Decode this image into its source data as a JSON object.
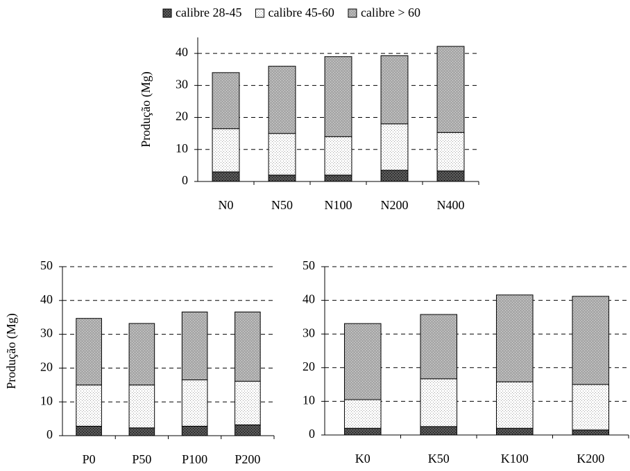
{
  "chart_data": [
    {
      "type": "stacked_bar",
      "y_label": "Produção (Mg)",
      "categories": [
        "N0",
        "N50",
        "N100",
        "N200",
        "N400"
      ],
      "series": [
        {
          "name": "calibre 28-45",
          "color": "#555555",
          "values": [
            3,
            2,
            2,
            3.5,
            3.3
          ]
        },
        {
          "name": "calibre 45-60",
          "color": "#ffffff",
          "values": [
            13.5,
            13,
            12,
            14.5,
            12
          ]
        },
        {
          "name": "calibre > 60",
          "color": "#a8a8a8",
          "values": [
            17.5,
            21,
            25,
            21.3,
            26.9
          ]
        }
      ],
      "ylim": [
        0,
        45
      ],
      "yticks": [
        0,
        10,
        20,
        30,
        40
      ],
      "grid": true
    },
    {
      "type": "stacked_bar",
      "y_label": "Produção (Mg)",
      "categories": [
        "P0",
        "P50",
        "P100",
        "P200"
      ],
      "series": [
        {
          "color": "#555555",
          "values": [
            2.8,
            2.3,
            2.8,
            3.2
          ]
        },
        {
          "color": "#ffffff",
          "values": [
            12.2,
            12.7,
            13.7,
            12.9
          ]
        },
        {
          "color": "#a8a8a8",
          "values": [
            19.7,
            18.2,
            20.1,
            20.5
          ]
        }
      ],
      "ylim": [
        0,
        50
      ],
      "yticks": [
        0,
        10,
        20,
        30,
        40,
        50
      ],
      "grid": true
    },
    {
      "type": "stacked_bar",
      "categories": [
        "K0",
        "K50",
        "K100",
        "K200"
      ],
      "series": [
        {
          "color": "#555555",
          "values": [
            2,
            2.5,
            2,
            1.5
          ]
        },
        {
          "color": "#ffffff",
          "values": [
            8.5,
            14.2,
            13.8,
            13.5
          ]
        },
        {
          "color": "#a8a8a8",
          "values": [
            22.6,
            19.1,
            25.8,
            26.2
          ]
        }
      ],
      "ylim": [
        0,
        50
      ],
      "yticks": [
        0,
        10,
        20,
        30,
        40,
        50
      ],
      "grid": true
    }
  ]
}
